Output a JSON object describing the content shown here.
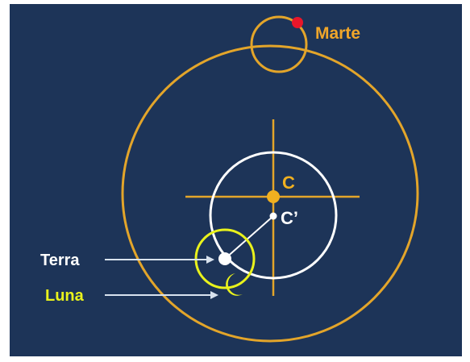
{
  "labels": {
    "mars": "Marte",
    "center": "C",
    "center_prime": "C’",
    "earth": "Terra",
    "moon": "Luna"
  },
  "colors": {
    "background": "#1d3458",
    "orbit_gold": "#e3a52a",
    "center_point": "#f0b020",
    "white": "#ffffff",
    "moon_yellow": "#e9f21c",
    "mars_red": "#e8162a",
    "mars_label": "#f0a62a"
  }
}
